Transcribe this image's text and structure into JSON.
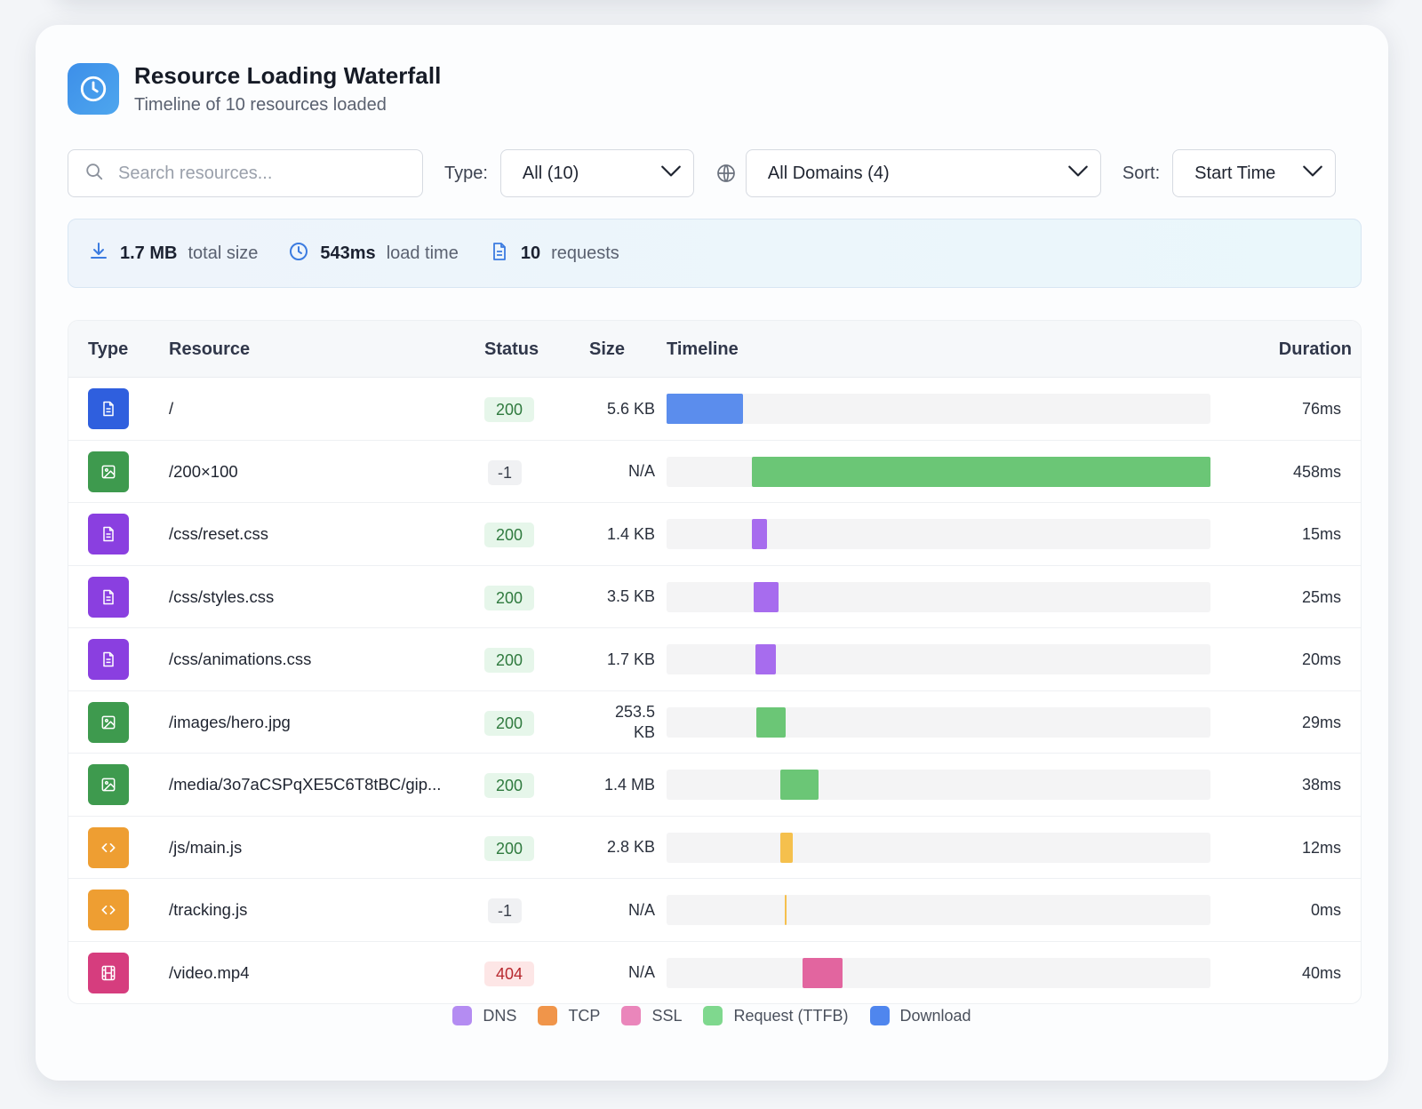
{
  "header": {
    "icon": "clock-icon",
    "title": "Resource Loading Waterfall",
    "subtitle": "Timeline of 10 resources loaded"
  },
  "toolbar": {
    "search_placeholder": "Search resources...",
    "type_label": "Type:",
    "type_value": "All (10)",
    "domain_value": "All Domains (4)",
    "sort_label": "Sort:",
    "sort_value": "Start Time"
  },
  "stats": {
    "size_value": "1.7 MB",
    "size_label": "total size",
    "time_value": "543ms",
    "time_label": "load time",
    "requests_value": "10",
    "requests_label": "requests"
  },
  "table": {
    "headers": {
      "type": "Type",
      "resource": "Resource",
      "status": "Status",
      "size": "Size",
      "timeline": "Timeline",
      "duration": "Duration"
    },
    "timeline_total_ms": 543,
    "rows": [
      {
        "kind": "document",
        "icon": "document-icon",
        "resource": "/",
        "status": "200",
        "size": "5.6 KB",
        "duration": "76ms",
        "start_ms": 0,
        "duration_ms": 76
      },
      {
        "kind": "image",
        "icon": "image-icon",
        "resource": "/200×100",
        "status": "-1",
        "size": "N/A",
        "duration": "458ms",
        "start_ms": 85,
        "duration_ms": 458
      },
      {
        "kind": "stylesheet",
        "icon": "document-icon",
        "resource": "/css/reset.css",
        "status": "200",
        "size": "1.4 KB",
        "duration": "15ms",
        "start_ms": 85,
        "duration_ms": 15
      },
      {
        "kind": "stylesheet",
        "icon": "document-icon",
        "resource": "/css/styles.css",
        "status": "200",
        "size": "3.5 KB",
        "duration": "25ms",
        "start_ms": 87,
        "duration_ms": 25
      },
      {
        "kind": "stylesheet",
        "icon": "document-icon",
        "resource": "/css/animations.css",
        "status": "200",
        "size": "1.7 KB",
        "duration": "20ms",
        "start_ms": 89,
        "duration_ms": 20
      },
      {
        "kind": "image",
        "icon": "image-icon",
        "resource": "/images/hero.jpg",
        "status": "200",
        "size": "253.5 KB",
        "duration": "29ms",
        "start_ms": 90,
        "duration_ms": 29
      },
      {
        "kind": "image",
        "icon": "image-icon",
        "resource": "/media/3o7aCSPqXE5C6T8tBC/gip...",
        "status": "200",
        "size": "1.4 MB",
        "duration": "38ms",
        "start_ms": 114,
        "duration_ms": 38
      },
      {
        "kind": "script",
        "icon": "code-icon",
        "resource": "/js/main.js",
        "status": "200",
        "size": "2.8 KB",
        "duration": "12ms",
        "start_ms": 114,
        "duration_ms": 12
      },
      {
        "kind": "script",
        "icon": "code-icon",
        "resource": "/tracking.js",
        "status": "-1",
        "size": "N/A",
        "duration": "0ms",
        "start_ms": 118,
        "duration_ms": 0
      },
      {
        "kind": "media",
        "icon": "film-icon",
        "resource": "/video.mp4",
        "status": "404",
        "size": "N/A",
        "duration": "40ms",
        "start_ms": 136,
        "duration_ms": 40
      }
    ]
  },
  "legend": [
    {
      "label": "DNS",
      "color": "#b48cf2"
    },
    {
      "label": "TCP",
      "color": "#f0954a"
    },
    {
      "label": "SSL",
      "color": "#ea86bb"
    },
    {
      "label": "Request (TTFB)",
      "color": "#7fd88e"
    },
    {
      "label": "Download",
      "color": "#4f86ee"
    }
  ],
  "colors": {
    "document_icon_bg": "#2f5fde",
    "image_icon_bg": "#3e9a4e",
    "stylesheet_icon_bg": "#8a3fe0",
    "script_icon_bg": "#ee9e32",
    "media_icon_bg": "#d63d7e",
    "bar_document": "#5b8ded",
    "bar_image": "#6bc676",
    "bar_stylesheet": "#a76cee",
    "bar_script": "#f5c04d",
    "bar_media": "#e2659f"
  }
}
